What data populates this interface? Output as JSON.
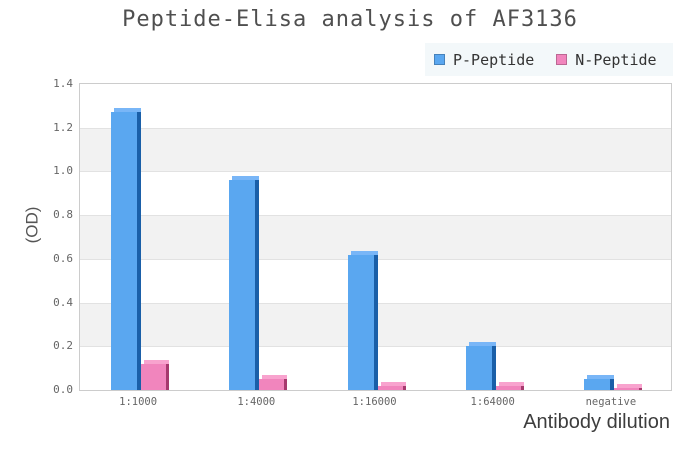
{
  "title": "Peptide-Elisa analysis of AF3136",
  "legend": {
    "items": [
      {
        "label": "P-Peptide",
        "color": "#5aa7f0"
      },
      {
        "label": "N-Peptide",
        "color": "#f185bd"
      }
    ]
  },
  "chart_data": {
    "type": "bar",
    "title": "Peptide-Elisa analysis of AF3136",
    "categories": [
      "1:1000",
      "1:4000",
      "1:16000",
      "1:64000",
      "negative"
    ],
    "series": [
      {
        "name": "P-Peptide",
        "values": [
          1.27,
          0.96,
          0.62,
          0.2,
          0.05
        ],
        "colors": {
          "face": "#5aa7f0",
          "side": "#1a5fa8",
          "top": "#79b6f7"
        }
      },
      {
        "name": "N-Peptide",
        "values": [
          0.12,
          0.05,
          0.02,
          0.02,
          0.01
        ],
        "colors": {
          "face": "#f185bd",
          "side": "#a63a6e",
          "top": "#f8a3ce"
        }
      }
    ],
    "xlabel": "Antibody dilution",
    "ylabel": "(OD)",
    "ylim": [
      0,
      1.4
    ],
    "yticks": [
      0.0,
      0.2,
      0.4,
      0.6,
      0.8,
      1.0,
      1.2,
      1.4
    ],
    "grid": true,
    "background_bands": {
      "light": "#ffffff",
      "dark": "#f2f2f2"
    },
    "legend_position": "top-right",
    "axis_color": "#cccccc",
    "tick_label_color": "#666666"
  }
}
